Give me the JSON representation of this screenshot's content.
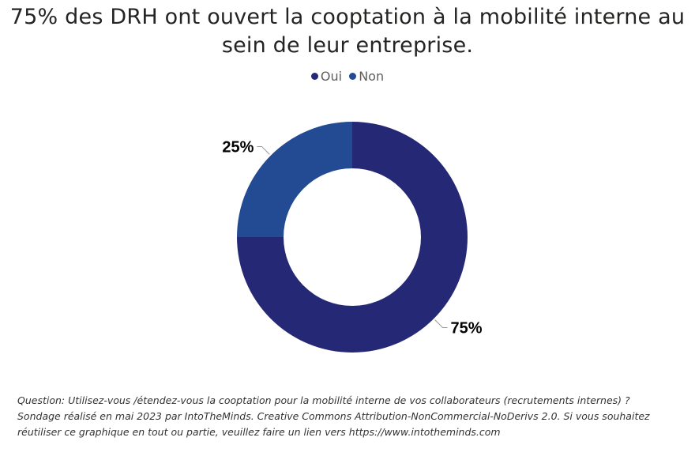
{
  "title_line1": "75% des DRH ont ouvert la cooptation à la mobilité interne au",
  "title_line2": "sein de leur entreprise.",
  "chart_data": {
    "type": "pie",
    "subtype": "donut",
    "categories": [
      "Oui",
      "Non"
    ],
    "values": [
      75,
      25
    ],
    "labels": [
      "75%",
      "25%"
    ],
    "colors": [
      "#252874",
      "#224B93"
    ],
    "legend": [
      "Oui",
      "Non"
    ],
    "legend_position": "top-center"
  },
  "footnote": {
    "line1": "Question: Utilisez-vous /étendez-vous la cooptation pour la mobilité interne de vos collaborateurs (recrutements internes) ?",
    "line2": "Sondage réalisé en mai 2023 par IntoTheMinds. Creative Commons Attribution-NonCommercial-NoDerivs 2.0. Si vous souhaitez",
    "line3": "réutiliser ce graphique en tout ou partie, veuillez faire un lien vers https://www.intotheminds.com"
  }
}
